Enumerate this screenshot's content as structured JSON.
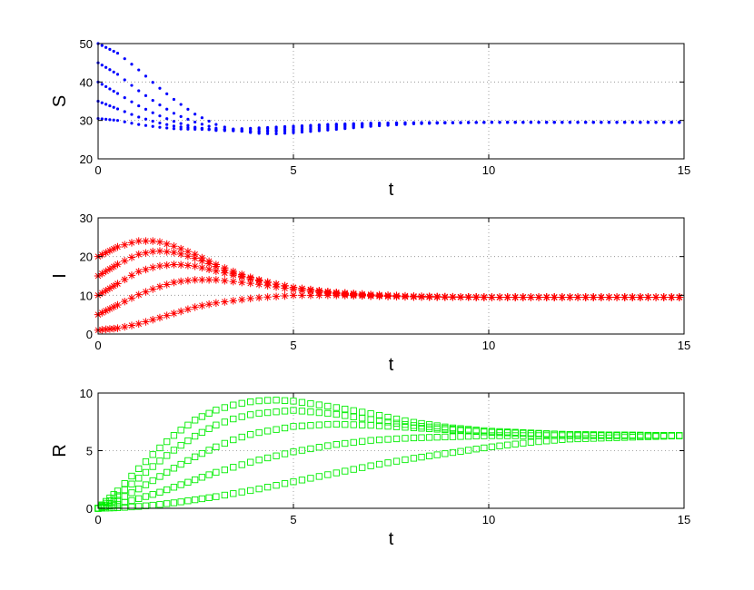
{
  "chart_data": [
    {
      "type": "scatter",
      "marker": "dot",
      "color": "#0000ff",
      "xlabel": "t",
      "ylabel": "S",
      "xlim": [
        0,
        15
      ],
      "ylim": [
        20,
        50
      ],
      "xticks": [
        0,
        5,
        10,
        15
      ],
      "yticks": [
        20,
        30,
        40,
        50
      ],
      "grid": "dotted",
      "series": [
        {
          "initial": 50,
          "equilibrium": 29.5,
          "points": [
            [
              0,
              50
            ],
            [
              0.5,
              47.5
            ],
            [
              1,
              43.5
            ],
            [
              1.5,
              39
            ],
            [
              2,
              35
            ],
            [
              2.5,
              31.5
            ],
            [
              3,
              29
            ],
            [
              3.5,
              27.5
            ],
            [
              4,
              26.7
            ],
            [
              4.5,
              26.5
            ],
            [
              5,
              26.8
            ],
            [
              6,
              27.6
            ],
            [
              7,
              28.5
            ],
            [
              8,
              29.1
            ],
            [
              9,
              29.4
            ],
            [
              10,
              29.5
            ],
            [
              12,
              29.5
            ],
            [
              15,
              29.5
            ]
          ]
        },
        {
          "initial": 45,
          "equilibrium": 29.5,
          "points": [
            [
              0,
              45
            ],
            [
              0.5,
              42
            ],
            [
              1,
              38
            ],
            [
              1.5,
              34.5
            ],
            [
              2,
              31.5
            ],
            [
              2.5,
              29.5
            ],
            [
              3,
              28
            ],
            [
              3.5,
              27.3
            ],
            [
              4,
              27
            ],
            [
              5,
              27.3
            ],
            [
              6,
              28
            ],
            [
              7,
              28.8
            ],
            [
              8,
              29.2
            ],
            [
              10,
              29.5
            ],
            [
              15,
              29.5
            ]
          ]
        },
        {
          "initial": 40,
          "equilibrium": 29.5,
          "points": [
            [
              0,
              40
            ],
            [
              0.5,
              37
            ],
            [
              1,
              34
            ],
            [
              1.5,
              31.5
            ],
            [
              2,
              29.5
            ],
            [
              2.5,
              28.2
            ],
            [
              3,
              27.4
            ],
            [
              4,
              27.2
            ],
            [
              5,
              27.7
            ],
            [
              6,
              28.4
            ],
            [
              7,
              29
            ],
            [
              8,
              29.3
            ],
            [
              10,
              29.5
            ],
            [
              15,
              29.5
            ]
          ]
        },
        {
          "initial": 35,
          "equilibrium": 29.5,
          "points": [
            [
              0,
              35
            ],
            [
              0.5,
              33
            ],
            [
              1,
              31
            ],
            [
              1.5,
              29.5
            ],
            [
              2,
              28.4
            ],
            [
              3,
              27.6
            ],
            [
              4,
              27.7
            ],
            [
              5,
              28.2
            ],
            [
              6,
              28.8
            ],
            [
              7,
              29.2
            ],
            [
              8,
              29.4
            ],
            [
              10,
              29.5
            ],
            [
              15,
              29.5
            ]
          ]
        },
        {
          "initial": 30.5,
          "equilibrium": 29.5,
          "points": [
            [
              0,
              30.5
            ],
            [
              0.5,
              30
            ],
            [
              1,
              29
            ],
            [
              1.5,
              28.3
            ],
            [
              2,
              27.8
            ],
            [
              3,
              27.6
            ],
            [
              4,
              28
            ],
            [
              5,
              28.5
            ],
            [
              6,
              29
            ],
            [
              7,
              29.3
            ],
            [
              8,
              29.4
            ],
            [
              10,
              29.5
            ],
            [
              15,
              29.5
            ]
          ]
        }
      ]
    },
    {
      "type": "scatter",
      "marker": "asterisk",
      "color": "#ff0000",
      "xlabel": "t",
      "ylabel": "I",
      "xlim": [
        0,
        15
      ],
      "ylim": [
        0,
        30
      ],
      "xticks": [
        0,
        5,
        10,
        15
      ],
      "yticks": [
        0,
        10,
        20,
        30
      ],
      "grid": "dotted",
      "series": [
        {
          "initial": 20,
          "equilibrium": 9.5,
          "points": [
            [
              0,
              20
            ],
            [
              0.5,
              22.5
            ],
            [
              1,
              24
            ],
            [
              1.5,
              24
            ],
            [
              2,
              22.5
            ],
            [
              2.5,
              20.5
            ],
            [
              3,
              18
            ],
            [
              3.5,
              16
            ],
            [
              4,
              14.3
            ],
            [
              4.5,
              13
            ],
            [
              5,
              12
            ],
            [
              6,
              10.8
            ],
            [
              7,
              10.2
            ],
            [
              8,
              9.8
            ],
            [
              9,
              9.6
            ],
            [
              10,
              9.5
            ],
            [
              12,
              9.5
            ],
            [
              15,
              9.5
            ]
          ]
        },
        {
          "initial": 15,
          "equilibrium": 9.5,
          "points": [
            [
              0,
              15
            ],
            [
              0.5,
              18
            ],
            [
              1,
              20.5
            ],
            [
              1.5,
              21.5
            ],
            [
              2,
              21
            ],
            [
              2.5,
              19.5
            ],
            [
              3,
              17.5
            ],
            [
              3.5,
              15.5
            ],
            [
              4,
              14
            ],
            [
              5,
              12
            ],
            [
              6,
              10.8
            ],
            [
              7,
              10
            ],
            [
              8,
              9.7
            ],
            [
              10,
              9.5
            ],
            [
              15,
              9.5
            ]
          ]
        },
        {
          "initial": 10,
          "equilibrium": 9.5,
          "points": [
            [
              0,
              10
            ],
            [
              0.5,
              13
            ],
            [
              1,
              16
            ],
            [
              1.5,
              17.5
            ],
            [
              2,
              18
            ],
            [
              2.5,
              17.5
            ],
            [
              3,
              16.3
            ],
            [
              4,
              14
            ],
            [
              5,
              12
            ],
            [
              6,
              10.6
            ],
            [
              7,
              9.9
            ],
            [
              8,
              9.6
            ],
            [
              10,
              9.5
            ],
            [
              15,
              9.5
            ]
          ]
        },
        {
          "initial": 5,
          "equilibrium": 9.5,
          "points": [
            [
              0,
              5
            ],
            [
              0.5,
              7.5
            ],
            [
              1,
              10
            ],
            [
              1.5,
              12
            ],
            [
              2,
              13.5
            ],
            [
              2.5,
              14
            ],
            [
              3,
              14
            ],
            [
              4,
              13
            ],
            [
              5,
              11.5
            ],
            [
              6,
              10.4
            ],
            [
              7,
              9.8
            ],
            [
              8,
              9.6
            ],
            [
              10,
              9.5
            ],
            [
              15,
              9.5
            ]
          ]
        },
        {
          "initial": 1,
          "equilibrium": 9.5,
          "points": [
            [
              0,
              1
            ],
            [
              0.5,
              1.5
            ],
            [
              1,
              2.5
            ],
            [
              1.5,
              4
            ],
            [
              2,
              5.5
            ],
            [
              2.5,
              7
            ],
            [
              3,
              8
            ],
            [
              4,
              9.3
            ],
            [
              5,
              10
            ],
            [
              6,
              10
            ],
            [
              7,
              9.8
            ],
            [
              8,
              9.6
            ],
            [
              10,
              9.5
            ],
            [
              15,
              9.5
            ]
          ]
        }
      ]
    },
    {
      "type": "scatter",
      "marker": "square",
      "color": "#00ee00",
      "xlabel": "t",
      "ylabel": "R",
      "xlim": [
        0,
        15
      ],
      "ylim": [
        0,
        10
      ],
      "xticks": [
        0,
        5,
        10,
        15
      ],
      "yticks": [
        0,
        5,
        10
      ],
      "grid": "dotted",
      "series": [
        {
          "initial": 0,
          "equilibrium": 6.3,
          "points": [
            [
              0,
              0
            ],
            [
              0.5,
              1.5
            ],
            [
              1,
              3.3
            ],
            [
              1.5,
              5
            ],
            [
              2,
              6.5
            ],
            [
              2.5,
              7.7
            ],
            [
              3,
              8.5
            ],
            [
              3.5,
              9
            ],
            [
              4,
              9.3
            ],
            [
              4.5,
              9.4
            ],
            [
              5,
              9.3
            ],
            [
              6,
              8.8
            ],
            [
              7,
              8.2
            ],
            [
              8,
              7.5
            ],
            [
              9,
              7
            ],
            [
              10,
              6.7
            ],
            [
              12,
              6.4
            ],
            [
              15,
              6.3
            ]
          ]
        },
        {
          "initial": 0,
          "equilibrium": 6.3,
          "points": [
            [
              0,
              0
            ],
            [
              0.5,
              1.1
            ],
            [
              1,
              2.5
            ],
            [
              1.5,
              3.9
            ],
            [
              2,
              5.2
            ],
            [
              2.5,
              6.3
            ],
            [
              3,
              7.2
            ],
            [
              3.5,
              7.8
            ],
            [
              4,
              8.2
            ],
            [
              5,
              8.5
            ],
            [
              6,
              8.2
            ],
            [
              7,
              7.7
            ],
            [
              8,
              7.2
            ],
            [
              9,
              6.9
            ],
            [
              10,
              6.6
            ],
            [
              12,
              6.4
            ],
            [
              15,
              6.3
            ]
          ]
        },
        {
          "initial": 0,
          "equilibrium": 6.3,
          "points": [
            [
              0,
              0
            ],
            [
              0.5,
              0.7
            ],
            [
              1,
              1.6
            ],
            [
              1.5,
              2.6
            ],
            [
              2,
              3.6
            ],
            [
              2.5,
              4.5
            ],
            [
              3,
              5.3
            ],
            [
              3.5,
              6
            ],
            [
              4,
              6.5
            ],
            [
              5,
              7.1
            ],
            [
              6,
              7.3
            ],
            [
              7,
              7.2
            ],
            [
              8,
              7
            ],
            [
              9,
              6.8
            ],
            [
              10,
              6.6
            ],
            [
              12,
              6.4
            ],
            [
              15,
              6.3
            ]
          ]
        },
        {
          "initial": 0,
          "equilibrium": 6.3,
          "points": [
            [
              0,
              0
            ],
            [
              0.5,
              0.35
            ],
            [
              1,
              0.8
            ],
            [
              1.5,
              1.3
            ],
            [
              2,
              1.9
            ],
            [
              2.5,
              2.5
            ],
            [
              3,
              3.1
            ],
            [
              4,
              4.1
            ],
            [
              5,
              4.9
            ],
            [
              6,
              5.5
            ],
            [
              7,
              5.9
            ],
            [
              8,
              6.1
            ],
            [
              9,
              6.2
            ],
            [
              10,
              6.3
            ],
            [
              12,
              6.3
            ],
            [
              15,
              6.3
            ]
          ]
        },
        {
          "initial": 0,
          "equilibrium": 6.3,
          "points": [
            [
              0,
              0
            ],
            [
              0.5,
              0.05
            ],
            [
              1,
              0.15
            ],
            [
              1.5,
              0.3
            ],
            [
              2,
              0.5
            ],
            [
              2.5,
              0.75
            ],
            [
              3,
              1
            ],
            [
              4,
              1.6
            ],
            [
              5,
              2.3
            ],
            [
              6,
              3
            ],
            [
              7,
              3.7
            ],
            [
              8,
              4.3
            ],
            [
              9,
              4.8
            ],
            [
              10,
              5.3
            ],
            [
              11,
              5.7
            ],
            [
              12,
              6
            ],
            [
              13,
              6.1
            ],
            [
              15,
              6.3
            ]
          ]
        }
      ]
    }
  ]
}
